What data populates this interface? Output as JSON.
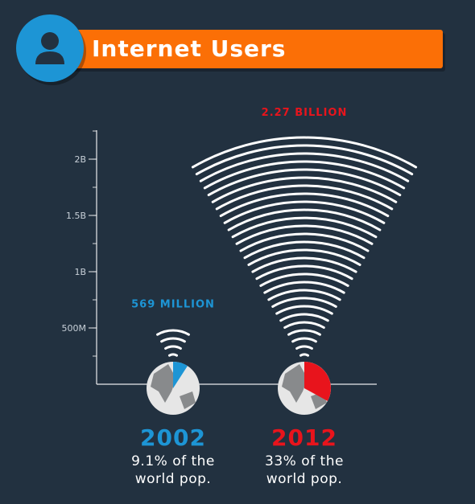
{
  "header": {
    "title": "Internet Users",
    "icon": "user-icon",
    "accent": "#fb6f06",
    "badge_color": "#1d95d5"
  },
  "chart_data": {
    "type": "bar",
    "categories": [
      "2002",
      "2012"
    ],
    "values": [
      0.569,
      2.27
    ],
    "value_labels": [
      "569 MILLION",
      "2.27 BILLION"
    ],
    "ylim": [
      0,
      2.3
    ],
    "yticks": [
      {
        "value": 0.5,
        "label": "500M"
      },
      {
        "value": 1.0,
        "label": "1B"
      },
      {
        "value": 1.5,
        "label": "1.5B"
      },
      {
        "value": 2.0,
        "label": "2B"
      }
    ],
    "minor_tick_step": 0.25,
    "colors": [
      "#1d95d5",
      "#e8141c"
    ],
    "world_share_percent": [
      9.1,
      33
    ],
    "captions": [
      [
        "9.1% of the",
        "world pop."
      ],
      [
        "33% of the",
        "world pop."
      ]
    ]
  }
}
